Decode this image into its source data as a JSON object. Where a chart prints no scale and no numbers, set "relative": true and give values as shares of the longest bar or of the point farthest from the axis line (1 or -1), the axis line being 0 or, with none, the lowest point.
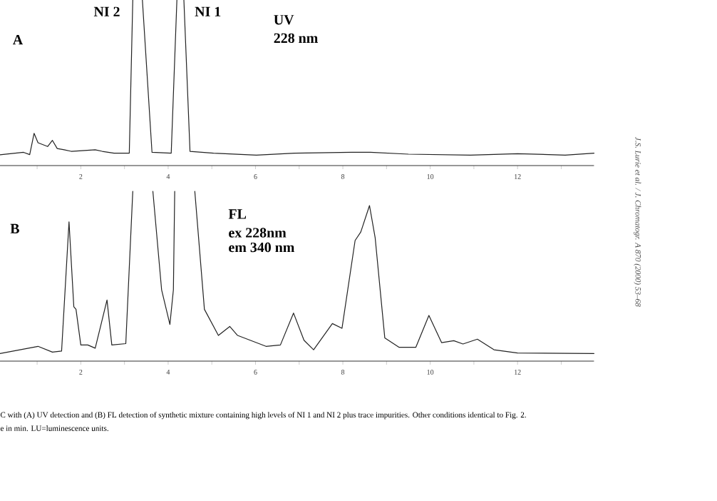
{
  "chart_data": [
    {
      "type": "line",
      "relative": true,
      "xlim": [
        0.15,
        13.75
      ],
      "xticks": [
        {
          "value": 1,
          "label": null
        },
        2,
        {
          "value": 3,
          "label": null
        },
        4,
        {
          "value": 5,
          "label": null
        },
        6,
        {
          "value": 7,
          "label": null
        },
        8,
        {
          "value": 9,
          "label": null
        },
        10,
        {
          "value": 11,
          "label": null
        },
        12,
        {
          "value": 13,
          "label": null
        }
      ],
      "annotations": [
        "A",
        "NI 2",
        "NI 1",
        "UV",
        "228 nm"
      ],
      "series": [
        {
          "color": "#222222",
          "x": [
            0.15,
            0.69,
            0.83,
            0.93,
            1.02,
            1.24,
            1.35,
            1.46,
            1.62,
            1.78,
            2.33,
            2.49,
            2.76,
            3.11,
            3.19,
            3.3,
            3.41,
            3.63,
            4.07,
            4.2,
            4.28,
            4.36,
            4.5,
            5.04,
            6.02,
            6.89,
            8.2,
            8.63,
            9.5,
            10.92,
            12.0,
            13.09,
            13.75
          ],
          "values": [
            0.065,
            0.08,
            0.066,
            0.195,
            0.138,
            0.115,
            0.152,
            0.103,
            0.095,
            0.086,
            0.095,
            0.086,
            0.075,
            0.075,
            1,
            null,
            1,
            0.08,
            0.075,
            1,
            null,
            1,
            0.086,
            0.075,
            0.063,
            0.075,
            0.08,
            0.08,
            0.069,
            0.063,
            0.072,
            0.063,
            0.075
          ]
        }
      ]
    },
    {
      "type": "line",
      "relative": true,
      "xlim": [
        0.15,
        13.75
      ],
      "xticks": [
        {
          "value": 1,
          "label": null
        },
        2,
        {
          "value": 3,
          "label": null
        },
        4,
        {
          "value": 5,
          "label": null
        },
        6,
        {
          "value": 7,
          "label": null
        },
        8,
        {
          "value": 9,
          "label": null
        },
        10,
        {
          "value": 11,
          "label": null
        },
        12,
        {
          "value": 13,
          "label": null
        }
      ],
      "annotations": [
        "B",
        "FL",
        "ex 228nm",
        "em 340 nm",
        "C with (A) UV detection and (B) FL detection of synthetic mixture containing high levels of NI 1 and NI 2 plus trace impurities. Other conditions identical to Fig. 2.",
        "e in min. LU=luminescence units.",
        "J.S. Lurie et al. / J. Chromatogr. A 870 (2000) 53–68"
      ],
      "series": [
        {
          "color": "#222222",
          "x": [
            0.15,
            1.02,
            1.35,
            1.56,
            1.73,
            1.84,
            1.89,
            2.0,
            2.16,
            2.33,
            2.6,
            2.71,
            3.03,
            3.19,
            3.42,
            3.65,
            3.85,
            4.04,
            4.12,
            4.15,
            4.38,
            4.61,
            4.83,
            5.15,
            5.41,
            5.59,
            6.24,
            6.57,
            6.87,
            7.11,
            7.33,
            7.76,
            7.98,
            8.28,
            8.41,
            8.61,
            8.74,
            8.96,
            9.29,
            9.67,
            9.97,
            10.26,
            10.54,
            10.75,
            11.08,
            11.46,
            12.0,
            13.75
          ],
          "values": [
            0.045,
            0.087,
            0.053,
            0.059,
            0.82,
            0.32,
            0.305,
            0.095,
            0.095,
            0.076,
            0.36,
            0.095,
            0.103,
            1,
            null,
            1,
            0.42,
            0.216,
            0.42,
            1,
            null,
            1,
            0.305,
            0.151,
            0.204,
            0.151,
            0.087,
            0.095,
            0.283,
            0.123,
            0.067,
            0.221,
            0.193,
            0.71,
            0.76,
            0.916,
            0.725,
            0.137,
            0.081,
            0.081,
            0.269,
            0.109,
            0.12,
            0.101,
            0.129,
            0.067,
            0.048,
            0.045
          ]
        }
      ]
    }
  ]
}
